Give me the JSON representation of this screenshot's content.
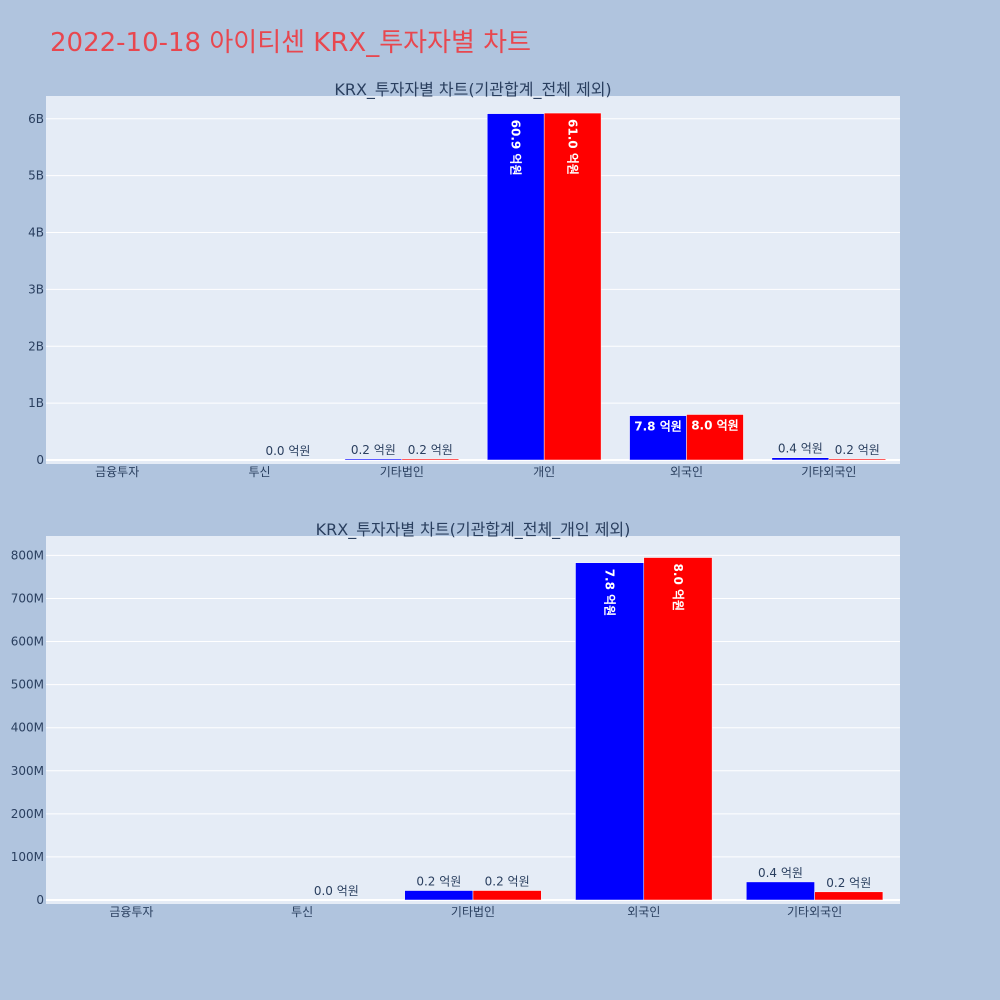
{
  "page_title": "2022-10-18 아이티센 KRX_투자자별 차트",
  "colors": {
    "series1": "#0000ff",
    "series2": "#ff0000",
    "title": "#e8474f",
    "background": "#b0c4de",
    "plot_bg": "#e5ecf6"
  },
  "chart_data": [
    {
      "type": "bar",
      "title": "KRX_투자자별 차트(기관합계_전체 제외)",
      "categories": [
        "금융투자",
        "투신",
        "기타법인",
        "개인",
        "외국인",
        "기타외국인"
      ],
      "ylim": [
        0,
        6400000000
      ],
      "yticks": [
        0,
        1000000000,
        2000000000,
        3000000000,
        4000000000,
        5000000000,
        6000000000
      ],
      "ytick_labels": [
        "0",
        "1B",
        "2B",
        "3B",
        "4B",
        "5B",
        "6B"
      ],
      "grid": true,
      "series": [
        {
          "values": [
            null,
            null,
            20000000,
            6090000000,
            780000000,
            40000000
          ],
          "labels": [
            "",
            "",
            "0.2 억원",
            "60.9 억원",
            "7.8 억원",
            "0.4 억원"
          ]
        },
        {
          "values": [
            null,
            0,
            20000000,
            6100000000,
            800000000,
            20000000
          ],
          "labels": [
            "",
            "0.0 억원",
            "0.2 억원",
            "61.0 억원",
            "8.0 억원",
            "0.2 억원"
          ]
        }
      ]
    },
    {
      "type": "bar",
      "title": "KRX_투자자별 차트(기관합계_전체_개인 제외)",
      "categories": [
        "금융투자",
        "투신",
        "기타법인",
        "외국인",
        "기타외국인"
      ],
      "ylim": [
        0,
        845000000
      ],
      "yticks": [
        0,
        100000000,
        200000000,
        300000000,
        400000000,
        500000000,
        600000000,
        700000000,
        800000000
      ],
      "ytick_labels": [
        "0",
        "100M",
        "200M",
        "300M",
        "400M",
        "500M",
        "600M",
        "700M",
        "800M"
      ],
      "grid": true,
      "series": [
        {
          "values": [
            null,
            null,
            22000000,
            783000000,
            42000000
          ],
          "labels": [
            "",
            "",
            "0.2 억원",
            "7.8 억원",
            "0.4 억원"
          ]
        },
        {
          "values": [
            null,
            0,
            22000000,
            795000000,
            19000000
          ],
          "labels": [
            "",
            "0.0 억원",
            "0.2 억원",
            "8.0 억원",
            "0.2 억원"
          ]
        }
      ]
    }
  ]
}
